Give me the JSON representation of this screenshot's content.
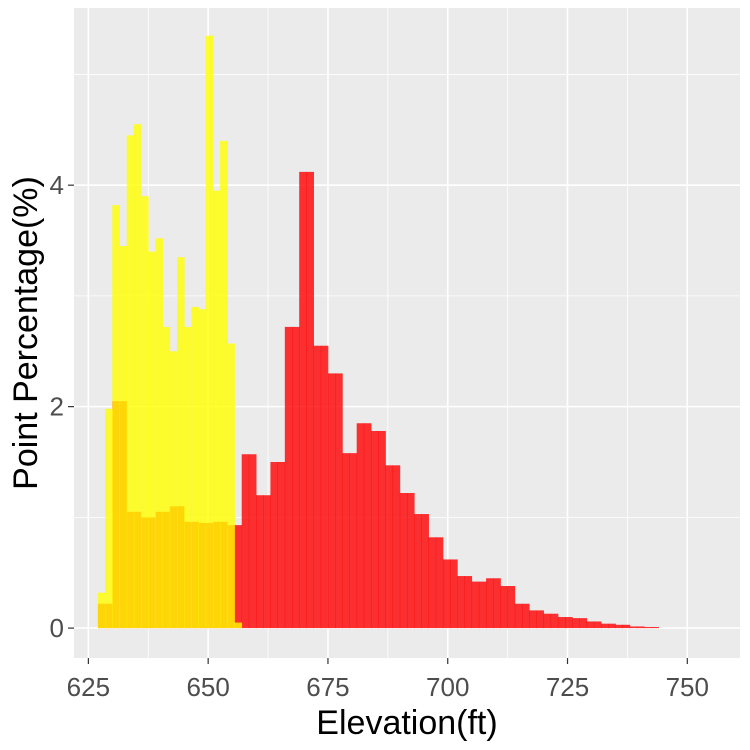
{
  "chart_data": {
    "type": "bar",
    "subtype": "overlapping-histogram",
    "title": "",
    "xlabel": "Elevation(ft)",
    "ylabel": "Point Percentage(%)",
    "xlim": [
      622,
      761
    ],
    "ylim": [
      -0.27,
      5.6
    ],
    "x_ticks": [
      625,
      650,
      675,
      700,
      725,
      750
    ],
    "y_ticks": [
      0,
      2,
      4
    ],
    "x_tick_labels": [
      "625",
      "650",
      "675",
      "700",
      "725",
      "750"
    ],
    "y_tick_labels": [
      "0",
      "2",
      "4"
    ],
    "bin_width": 1.5,
    "grid": true,
    "legend": "none",
    "colors": {
      "panel_background": "#ebebeb",
      "gridline": "#ffffff",
      "overlap": "#ffd700"
    },
    "series": [
      {
        "name": "red",
        "color": "#ff0000",
        "opacity": 0.8,
        "bins": [
          [
            627,
            0.22
          ],
          [
            628.5,
            0.22
          ],
          [
            630,
            2.05
          ],
          [
            631.5,
            2.05
          ],
          [
            633,
            1.05
          ],
          [
            634.5,
            1.05
          ],
          [
            636,
            1.0
          ],
          [
            637.5,
            1.0
          ],
          [
            639,
            1.05
          ],
          [
            640.5,
            1.05
          ],
          [
            642,
            1.1
          ],
          [
            643.5,
            1.1
          ],
          [
            645,
            0.96
          ],
          [
            646.5,
            0.96
          ],
          [
            648,
            0.95
          ],
          [
            649.5,
            0.95
          ],
          [
            651,
            0.96
          ],
          [
            652.5,
            0.96
          ],
          [
            654,
            0.93
          ],
          [
            655.5,
            0.93
          ],
          [
            657,
            1.57
          ],
          [
            658.5,
            1.57
          ],
          [
            660,
            1.2
          ],
          [
            661.5,
            1.2
          ],
          [
            663,
            1.5
          ],
          [
            664.5,
            1.5
          ],
          [
            666,
            2.72
          ],
          [
            667.5,
            2.72
          ],
          [
            669,
            4.12
          ],
          [
            670.5,
            4.12
          ],
          [
            672,
            2.55
          ],
          [
            673.5,
            2.55
          ],
          [
            675,
            2.3
          ],
          [
            676.5,
            2.3
          ],
          [
            678,
            1.58
          ],
          [
            679.5,
            1.58
          ],
          [
            681,
            1.85
          ],
          [
            682.5,
            1.85
          ],
          [
            684,
            1.78
          ],
          [
            685.5,
            1.78
          ],
          [
            687,
            1.47
          ],
          [
            688.5,
            1.47
          ],
          [
            690,
            1.22
          ],
          [
            691.5,
            1.22
          ],
          [
            693,
            1.03
          ],
          [
            694.5,
            1.03
          ],
          [
            696,
            0.82
          ],
          [
            697.5,
            0.82
          ],
          [
            699,
            0.62
          ],
          [
            700.5,
            0.62
          ],
          [
            702,
            0.47
          ],
          [
            703.5,
            0.47
          ],
          [
            705,
            0.42
          ],
          [
            706.5,
            0.42
          ],
          [
            708,
            0.45
          ],
          [
            709.5,
            0.45
          ],
          [
            711,
            0.38
          ],
          [
            712.5,
            0.38
          ],
          [
            714,
            0.22
          ],
          [
            715.5,
            0.22
          ],
          [
            717,
            0.16
          ],
          [
            718.5,
            0.16
          ],
          [
            720,
            0.13
          ],
          [
            721.5,
            0.13
          ],
          [
            723,
            0.1
          ],
          [
            724.5,
            0.1
          ],
          [
            726,
            0.09
          ],
          [
            727.5,
            0.09
          ],
          [
            729,
            0.06
          ],
          [
            730.5,
            0.06
          ],
          [
            732,
            0.04
          ],
          [
            733.5,
            0.04
          ],
          [
            735,
            0.03
          ],
          [
            736.5,
            0.03
          ],
          [
            738,
            0.015
          ],
          [
            739.5,
            0.015
          ],
          [
            741,
            0.01
          ],
          [
            742.5,
            0.01
          ]
        ]
      },
      {
        "name": "yellow",
        "color": "#ffff00",
        "opacity": 0.8,
        "bins": [
          [
            627,
            0.32
          ],
          [
            628.5,
            1.98
          ],
          [
            630,
            3.82
          ],
          [
            631.5,
            3.45
          ],
          [
            633,
            4.45
          ],
          [
            634.5,
            4.55
          ],
          [
            636,
            3.9
          ],
          [
            637.5,
            3.4
          ],
          [
            639,
            3.52
          ],
          [
            640.5,
            2.72
          ],
          [
            642,
            2.5
          ],
          [
            643.5,
            3.35
          ],
          [
            645,
            2.72
          ],
          [
            646.5,
            2.9
          ],
          [
            648,
            2.88
          ],
          [
            649.5,
            5.35
          ],
          [
            651,
            3.95
          ],
          [
            652.5,
            4.4
          ],
          [
            654,
            2.57
          ],
          [
            655.5,
            0.05
          ]
        ]
      }
    ]
  }
}
